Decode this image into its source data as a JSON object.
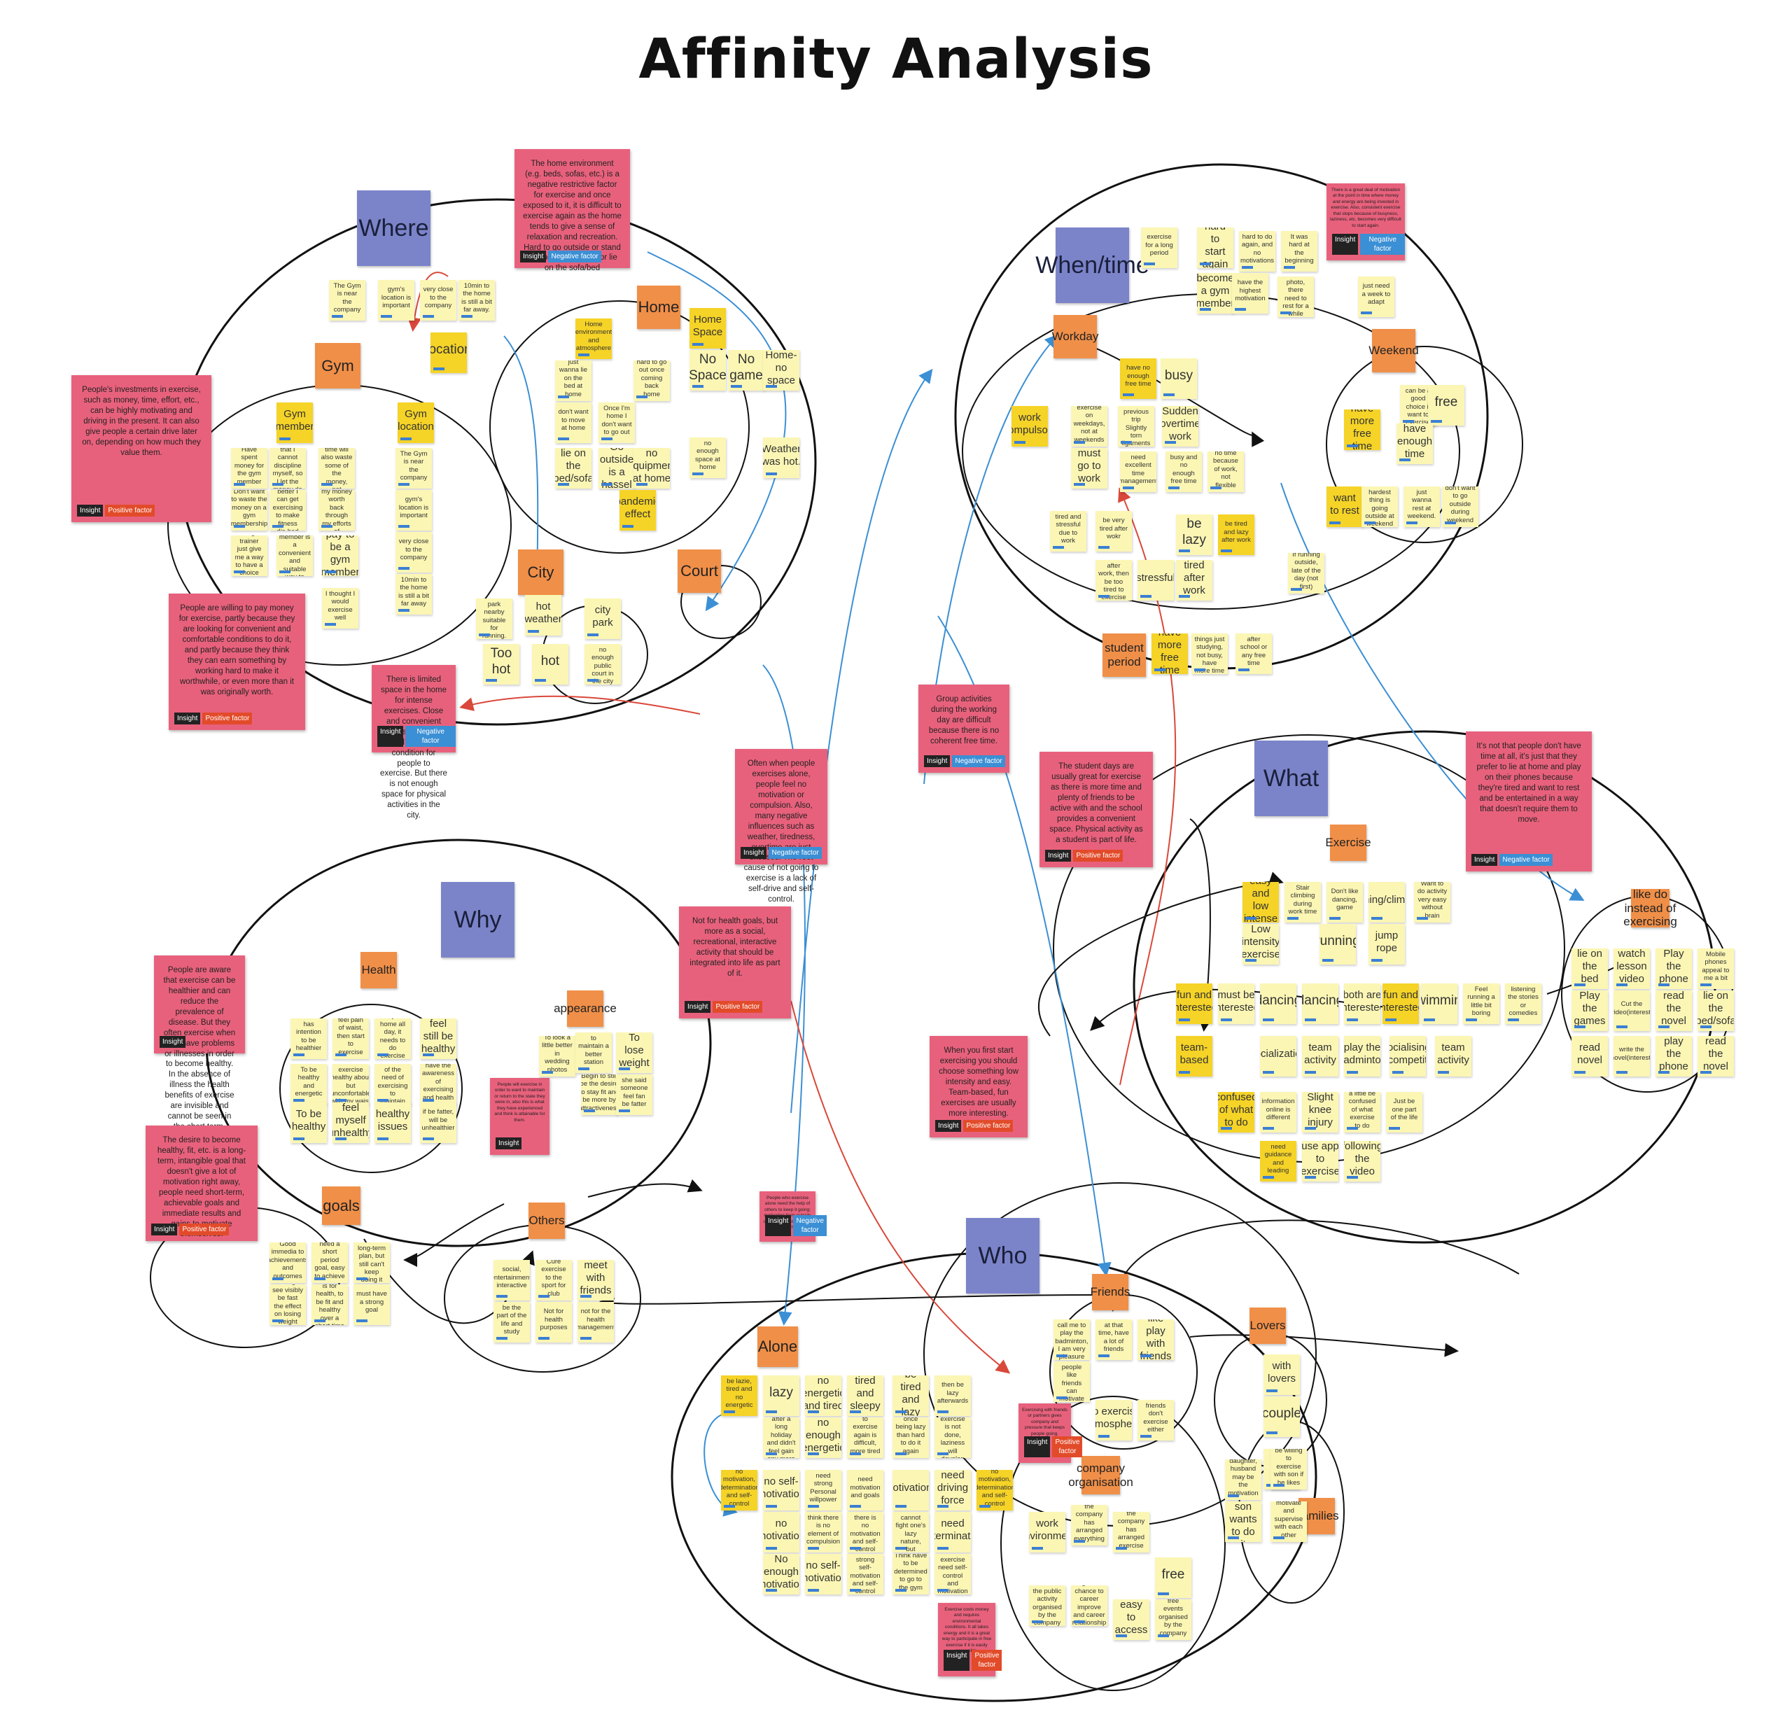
{
  "title": "Affinity Analysis",
  "tags": {
    "insight": "Insight",
    "negative": "Negative factor",
    "positive": "Positive factor"
  },
  "headers": [
    {
      "id": "where",
      "label": "Where"
    },
    {
      "id": "when",
      "label": "When/time"
    },
    {
      "id": "why",
      "label": "Why"
    },
    {
      "id": "what",
      "label": "What"
    },
    {
      "id": "who",
      "label": "Who"
    }
  ],
  "subheaders": [
    {
      "id": "gym",
      "label": "Gym"
    },
    {
      "id": "home",
      "label": "Home"
    },
    {
      "id": "city",
      "label": "City"
    },
    {
      "id": "court",
      "label": "Court"
    },
    {
      "id": "workday",
      "label": "Workday"
    },
    {
      "id": "weekend",
      "label": "Weekend"
    },
    {
      "id": "student",
      "label": "student period"
    },
    {
      "id": "exercise",
      "label": "Exercise"
    },
    {
      "id": "likedo",
      "label": "like do instead of exercising"
    },
    {
      "id": "health",
      "label": "Health"
    },
    {
      "id": "appearance",
      "label": "appearance"
    },
    {
      "id": "goals",
      "label": "goals"
    },
    {
      "id": "others",
      "label": "Others"
    },
    {
      "id": "friends",
      "label": "Friends"
    },
    {
      "id": "lovers",
      "label": "Lovers"
    },
    {
      "id": "families",
      "label": "Families"
    },
    {
      "id": "company",
      "label": "company organisation"
    },
    {
      "id": "alone",
      "label": "Alone"
    }
  ],
  "insights": [
    {
      "id": "i1",
      "text": "The home environment (e.g. beds, sofas, etc.) is a negative restrictive factor for exercise and once exposed to it, it is difficult to exercise again as the home tends to give a sense of relaxation and recreation. Hard to go outside or stand up once back home or lie on the sofa/bed",
      "tag": "Negative factor"
    },
    {
      "id": "i2",
      "text": "People's investments in exercise, such as money, time, effort, etc., can be highly motivating and driving in the present. It can also give people a certain drive later on, depending on how much they value them.",
      "tag": "Positive factor"
    },
    {
      "id": "i3",
      "text": "People are willing to pay money for exercise, partly because they are looking for convenient and comfortable conditions to do it, and partly because they think they can earn something by working hard to make it worthwhile, or even more than it was originally worth.",
      "tag": "Positive factor"
    },
    {
      "id": "i4",
      "text": "There is limited space in the home for intense exercises. Close and convenient access to a sports field is a prior condition for people to exercise. But there is not enough space for physical activities in the city.",
      "tag": "Negative factor"
    },
    {
      "id": "i5",
      "text": "There is a great deal of motivation at the point in time where money and energy are being invested in exercise. Also, consistent exercise that stops because of busyness, laziness, etc. becomes very difficult to start again.",
      "tag": "Negative factor"
    },
    {
      "id": "i6",
      "text": "Group activities during the working day are difficult because there is no coherent free time.",
      "tag": "Negative factor"
    },
    {
      "id": "i7",
      "text": "Often when people exercises alone, people feel no motivation or compulsion. Also, many negative influences such as weather, tiredness, overtime are just excuses. The root cause of not going to exercise is a lack of self-drive and self-control.",
      "tag": "Negative factor"
    },
    {
      "id": "i8",
      "text": "The student days are usually great for exercise as there is more time and plenty of friends to be active with and the school provides a convenient space. Physical activity as a student is part of life.",
      "tag": "Positive factor"
    },
    {
      "id": "i9",
      "text": "It's not that people don't have time at all, it's just that they prefer to lie at home and play on their phones because they're tired and want to rest and be entertained in a way that doesn't require them to move.",
      "tag": "Negative factor"
    },
    {
      "id": "i10",
      "text": "Not for health goals, but more as a social, recreational, interactive activity that should be integrated into life as part of it.",
      "tag": "Positive factor"
    },
    {
      "id": "i11",
      "text": "People are aware that exercise can be healthier and can reduce the prevalence of disease. But they often exercise when they have problems or illnesses in order to become healthy. In the absence of illness the health benefits of exercise are invisible and cannot be seen in the short term. Customers mostly do not associate exercise with something must be done.",
      "tag": ""
    },
    {
      "id": "i12",
      "text": "People will exercise in order to want to maintain or return to the state they were in, also this is what they have experienced and think is attainable for them.",
      "tag": ""
    },
    {
      "id": "i13",
      "text": "The desire to become healthy, fit, etc. is a long-term, intangible goal that doesn't give a lot of motivation right away, people need short-term, achievable goals and immediate results and gains to motivate themselves.",
      "tag": "Positive factor"
    },
    {
      "id": "i14",
      "text": "When you first start exercising you should choose something low intensity and easy. Team-based, fun exercises are usually more interesting.",
      "tag": "Positive factor"
    },
    {
      "id": "i15",
      "text": "People who exercise alone need the help of others to keep it going; motivation from outside often matters more than inner drive.",
      "tag": "Negative factor"
    },
    {
      "id": "i16",
      "text": "Exercising with friends or partners gives company and pressure that keeps people going.",
      "tag": "Positive factor"
    },
    {
      "id": "i17",
      "text": "Exercise costs money and requires environmental conditions. It all takes energy and it is a great way to participate in free exercise if it is easily accessible.",
      "tag": "Positive factor"
    }
  ],
  "notes": {
    "where": [
      "The Gym is near the company",
      "gym's location is important",
      "very close to the company",
      "10min to the home is still a bit far away.",
      "location",
      "Gym member",
      "Gym location",
      "Have spent money for the gym member",
      "Feeling certain that I cannot discipline myself, so I let the money do it",
      "Recycling the paid time will also waste some of the money, not worthwhile",
      "Don't want to waste the money on a gym membership",
      "Don't think any better I can get exercising to make fitness dis-bad self",
      "I think I can get my money worth back through my efforts of exercising",
      "Using a trainer just give me a way to have a choice",
      "Feeling a gym member is a convenient and suitable way to exercise",
      "pay to be a gym member",
      "I thought I would exercise well",
      "The Gym is near the company",
      "gym's location is important",
      "very close to the company",
      "10min to the home is still a bit far away",
      "Home environment and atmosphere",
      "just wanna lie on the bed at home",
      "hard to go out once coming back home",
      "don't want to move at home",
      "Once I'm home I don't want to go out",
      "lie on the bed/sofa",
      "Go outside is a hassel",
      "no equipment at home",
      "pandemic effect",
      "Home Space",
      "No Space",
      "No game",
      "Home-no space",
      "no enough space at home",
      "Weather was hot.",
      "there is a park nearby suitable for running.",
      "hot weather",
      "city park",
      "Too hot",
      "hot",
      "there is no enough public court in the city"
    ],
    "when": [
      "exercise for a long period",
      "hard to start again",
      "hard to do again, and no motivations",
      "It was hard at the beginning",
      "become a gym member",
      "have the highest motivation",
      "after the photo, there need to rest for a while",
      "just need a week to adapt",
      "have no enough free time",
      "busy",
      "work compulsory",
      "exercise on weekdays, not at weekends",
      "must go to work",
      "On a previous trip Slightly torn ligaments",
      "Sudden overtime work",
      "need excellent time management",
      "busy and no enough free time",
      "no time because of work, not flexible",
      "tired and stressful due to work",
      "be very tired after wokr",
      "be lazy",
      "be tired and lazy after work",
      "be tired after work, then be too tired to exercise",
      "stressful",
      "tired after work",
      "If running outside, late of the day (not first)",
      "weekend can be a good choice if want to exercise",
      "free",
      "have more free time",
      "have enough time",
      "want to rest",
      "the hardest thing is going outside at weekend",
      "just wanna rest at weekend.",
      "don't want to go outside during weekend",
      "have more free time",
      "no other things just studying, not busy, have more time",
      "after school or any free time"
    ],
    "what": [
      "easy and low intense",
      "Stair climbing during work time",
      "Don't like dancing, game",
      "running/climbing",
      "Want to do activity very easy without brain",
      "Low intensity exercise",
      "running",
      "jump rope",
      "fun and interested",
      "must be interested",
      "dancing",
      "dancing",
      "both are interested",
      "fun and interested",
      "swimming",
      "Feel running a little bit boring",
      "listening the stories or comedies",
      "team-based",
      "socialization",
      "team activity",
      "play the badminton",
      "socialising, competit",
      "team activity",
      "confused of what to do",
      "information online is different",
      "Slight knee injury",
      "a little be confused of what exercise to do",
      "Just be one part of the life",
      "need guidance and leading",
      "use app to exercise",
      "following the video",
      "lie on the bed",
      "watch lesson video",
      "Play the phone",
      "Mobile phones appeal to me a bit",
      "Play the games",
      "Cut the video(interest)",
      "read the novel",
      "lie on the bed/sofa",
      "read novel",
      "write the novel(interest)",
      "play the phone",
      "read the novel"
    ],
    "why": [
      "has intention to be healthier",
      "feel pain of waist, then start to exercise",
      "stay at home all day, it needs to do exercise",
      "feel still be healthy",
      "To be healthy and energetic",
      "Used to exercise healthy about but unconfortable with my waist",
      "have the awareness of the need of exercising to maintain the health",
      "have the awareness of exercising and health",
      "To be healthy",
      "feel myself unhealthy",
      "healthy issues",
      "if be fatter, will be unhealthier",
      "To look a little better in wedding photos",
      "to maintain a better station",
      "To lose weight",
      "Begin to still be the desire to stay fit and be more by attractiveness",
      "she said someone feel fan be fatter",
      "Good immedia to achievements and outcomes",
      "need a short period goal, easy to achieve",
      "Have a long-term plan, but still can't keep doing it",
      "wanting to see visibly be fast the effect on losing weight",
      "Everything is for health, to be fit and healthy over a short time",
      "must have a strong goal",
      "social, entertainment, interactive",
      "Cure exercise to the sport for club",
      "meet with friends",
      "be the part of the life and study",
      "Not for health purposes",
      "not for the health management"
    ],
    "who": [
      "be lazie, tired and no energetic",
      "lazy",
      "no energetic and tired",
      "tired and sleepy",
      "be tired and lazy",
      "then be lazy afterwards",
      "stopped after a long holiday and didn't feel gain any more",
      "no enough energetic",
      "to exercise again is difficult, more tired",
      "once being lazy than hard to do it again",
      "if once exercise is not done, laziness will develop",
      "no motivation, determination and self-control",
      "no self-motivation",
      "need strong Personal willpower",
      "need motivation and goals",
      "motivations",
      "need driving force",
      "no motivation, determination and self-control",
      "no motivation",
      "think there is no element of compulsion",
      "if exercise alone, there is no motivation and self-control ability",
      "it's a fact that cannot fight one's lazy nature, but stressful",
      "need determination",
      "No enough motivation",
      "no self-motivation",
      "need strong self-motivation and self-control",
      "Think have to be determined to go to the gym",
      "Think exercise need self-control and motivation",
      "A friend call me to play the badminton, I am very pleasure",
      "at that time, have a lot of friends",
      "like play with friends",
      "Not sure if other people like friends can motivate me",
      "no exercise atmosphere",
      "friends don't exercise either",
      "with lovers",
      "couple",
      "son",
      "daughter, husband may be the motivation",
      "be willing to exercise with son if he likes",
      "my son wants to do it",
      "motivate and supervise with each other",
      "work environment",
      "the company has arranged everything",
      "the company has arranged exercise",
      "free",
      "will attend the public activity organised by the company",
      "good chance to career improve and career relationship",
      "easy to access",
      "free events organised by the company"
    ]
  }
}
